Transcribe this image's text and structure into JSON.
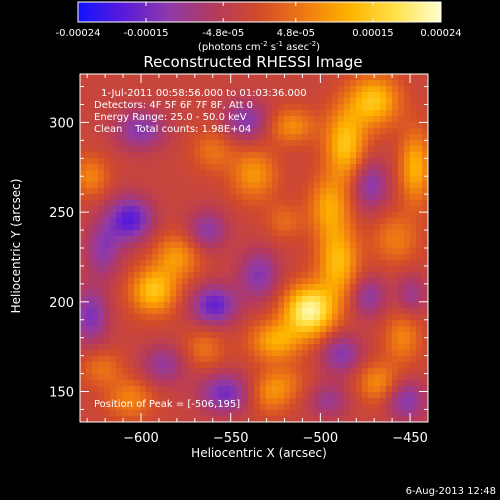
{
  "colorbar": {
    "label_main": "(photons cm",
    "sup1": "-2",
    "label_mid": " s",
    "sup2": "-1",
    "label_end": " asec",
    "sup3": "-2",
    "label_close": ")",
    "ticks": [
      "-0.00024",
      "-0.00015",
      "-4.8e-05",
      "4.8e-05",
      "0.00015",
      "0.00024"
    ],
    "range": [
      -0.00024,
      0.00024
    ],
    "colors": [
      "#1212ff",
      "#5a1ad9",
      "#8f3aa8",
      "#b43a5e",
      "#d24b2a",
      "#ef7a12",
      "#ffb400",
      "#ffe14a",
      "#ffffcf"
    ]
  },
  "chart_data": {
    "type": "heatmap",
    "title": "Reconstructed RHESSI Image",
    "xlabel": "Heliocentric X (arcsec)",
    "ylabel": "Heliocentric Y (arcsec)",
    "xlim": [
      -634,
      -440
    ],
    "ylim": [
      133,
      327
    ],
    "x_ticks": [
      -600,
      -550,
      -500,
      -450
    ],
    "y_ticks": [
      150,
      200,
      250,
      300
    ],
    "annotations": [
      "1-Jul-2011 00:58:56.000 to 01:03:36.000",
      "Detectors: 4F 5F 6F 7F 8F, Att 0",
      "Energy Range: 25.0 - 50.0 keV",
      "Clean    Total counts: 1.98E+04"
    ],
    "peak_label": "Position of Peak = [-506,195]",
    "peak": [
      -506,
      195
    ],
    "grid": false,
    "value_units": "photons cm^-2 s^-1 asec^-2",
    "sources": [
      {
        "x": -506,
        "y": 195,
        "value": 0.00024,
        "sx": 10,
        "sy": 10
      },
      {
        "x": -490,
        "y": 222,
        "value": 0.00015,
        "sx": 8,
        "sy": 14
      },
      {
        "x": -495,
        "y": 253,
        "value": 0.00012,
        "sx": 8,
        "sy": 12
      },
      {
        "x": -486,
        "y": 288,
        "value": 0.00016,
        "sx": 8,
        "sy": 14
      },
      {
        "x": -470,
        "y": 312,
        "value": 0.00016,
        "sx": 10,
        "sy": 10
      },
      {
        "x": -447,
        "y": 275,
        "value": 0.00014,
        "sx": 6,
        "sy": 14
      },
      {
        "x": -458,
        "y": 235,
        "value": 8e-05,
        "sx": 9,
        "sy": 10
      },
      {
        "x": -454,
        "y": 180,
        "value": 9e-05,
        "sx": 7,
        "sy": 10
      },
      {
        "x": -468,
        "y": 155,
        "value": 0.0001,
        "sx": 8,
        "sy": 8
      },
      {
        "x": -525,
        "y": 178,
        "value": 0.00013,
        "sx": 10,
        "sy": 8
      },
      {
        "x": -528,
        "y": 149,
        "value": 9e-05,
        "sx": 8,
        "sy": 8
      },
      {
        "x": -593,
        "y": 206,
        "value": 0.00016,
        "sx": 9,
        "sy": 9
      },
      {
        "x": -580,
        "y": 225,
        "value": 0.00011,
        "sx": 9,
        "sy": 9
      },
      {
        "x": -565,
        "y": 174,
        "value": 7e-05,
        "sx": 8,
        "sy": 8
      },
      {
        "x": -606,
        "y": 146,
        "value": 9e-05,
        "sx": 9,
        "sy": 8
      },
      {
        "x": -622,
        "y": 163,
        "value": 7e-05,
        "sx": 8,
        "sy": 7
      },
      {
        "x": -628,
        "y": 270,
        "value": 9e-05,
        "sx": 7,
        "sy": 8
      },
      {
        "x": -560,
        "y": 284,
        "value": 7e-05,
        "sx": 8,
        "sy": 8
      },
      {
        "x": -537,
        "y": 271,
        "value": 0.00011,
        "sx": 9,
        "sy": 10
      },
      {
        "x": -516,
        "y": 298,
        "value": 0.0001,
        "sx": 9,
        "sy": 7
      },
      {
        "x": -520,
        "y": 245,
        "value": 6e-05,
        "sx": 7,
        "sy": 7
      },
      {
        "x": -518,
        "y": 155,
        "value": 5e-05,
        "sx": 8,
        "sy": 7
      },
      {
        "x": -606,
        "y": 246,
        "value": -0.00016,
        "sx": 9,
        "sy": 9
      },
      {
        "x": -600,
        "y": 296,
        "value": -0.00011,
        "sx": 10,
        "sy": 8
      },
      {
        "x": -621,
        "y": 229,
        "value": -0.0001,
        "sx": 7,
        "sy": 11
      },
      {
        "x": -563,
        "y": 240,
        "value": -0.0001,
        "sx": 8,
        "sy": 8
      },
      {
        "x": -559,
        "y": 198,
        "value": -0.00015,
        "sx": 9,
        "sy": 8
      },
      {
        "x": -553,
        "y": 149,
        "value": -0.00013,
        "sx": 10,
        "sy": 8
      },
      {
        "x": -587,
        "y": 165,
        "value": -9e-05,
        "sx": 9,
        "sy": 8
      },
      {
        "x": -628,
        "y": 192,
        "value": -0.00012,
        "sx": 7,
        "sy": 11
      },
      {
        "x": -534,
        "y": 215,
        "value": -0.00011,
        "sx": 8,
        "sy": 10
      },
      {
        "x": -488,
        "y": 171,
        "value": -0.00011,
        "sx": 8,
        "sy": 8
      },
      {
        "x": -473,
        "y": 203,
        "value": -0.0001,
        "sx": 7,
        "sy": 8
      },
      {
        "x": -472,
        "y": 265,
        "value": -0.00011,
        "sx": 7,
        "sy": 10
      },
      {
        "x": -452,
        "y": 145,
        "value": -0.00011,
        "sx": 8,
        "sy": 8
      },
      {
        "x": -449,
        "y": 204,
        "value": -8e-05,
        "sx": 6,
        "sy": 8
      },
      {
        "x": -495,
        "y": 145,
        "value": -8e-05,
        "sx": 8,
        "sy": 7
      },
      {
        "x": -541,
        "y": 301,
        "value": -0.00011,
        "sx": 9,
        "sy": 8
      }
    ]
  },
  "footer": {
    "date": "6-Aug-2013 12:48"
  }
}
